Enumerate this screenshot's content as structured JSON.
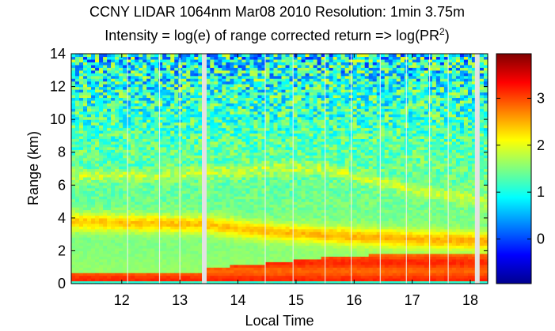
{
  "chart_data": {
    "type": "heatmap",
    "title": "CCNY LIDAR 1064nm Mar08 2010 Resolution: 1min 3.75m",
    "subtitle_prefix": "Intensity = log(e) of range corrected return => log(PR",
    "subtitle_superscript": "2",
    "subtitle_suffix": ")",
    "xlabel": "Local Time",
    "ylabel": "Range (km)",
    "xlim": [
      11.13,
      18.3
    ],
    "ylim": [
      0,
      14
    ],
    "x_ticks": [
      12,
      13,
      14,
      15,
      16,
      17,
      18
    ],
    "x_tick_labels": [
      "12",
      "13",
      "14",
      "15",
      "16",
      "17",
      "18"
    ],
    "y_ticks": [
      0,
      2,
      4,
      6,
      8,
      10,
      12,
      14
    ],
    "y_tick_labels": [
      "0",
      "2",
      "4",
      "6",
      "8",
      "10",
      "12",
      "14"
    ],
    "colorbar": {
      "range": [
        -0.95,
        3.95
      ],
      "ticks": [
        0,
        1,
        2,
        3
      ],
      "tick_labels": [
        "0",
        "1",
        "2",
        "3"
      ],
      "colormap": "jet"
    },
    "data_gaps_local_time": [
      13.42,
      18.12
    ],
    "profile_breaks_local_time": [
      12.1,
      12.65,
      13.0,
      14.47,
      14.95,
      15.5,
      15.95,
      16.45,
      16.9,
      17.3,
      17.62
    ],
    "grid": false,
    "features": [
      {
        "name": "boundary layer",
        "intensity": 3.0,
        "top_km_by_time": [
          [
            11.13,
            0.7
          ],
          [
            13.4,
            0.75
          ],
          [
            13.5,
            1.0
          ],
          [
            14.5,
            1.25
          ],
          [
            15.5,
            1.6
          ],
          [
            16.5,
            1.8
          ],
          [
            18.3,
            1.9
          ]
        ]
      },
      {
        "name": "aerosol layer",
        "intensity": 2.4,
        "center_km_by_time": [
          [
            11.13,
            3.8
          ],
          [
            12.5,
            3.7
          ],
          [
            13.5,
            3.6
          ],
          [
            14.5,
            3.2
          ],
          [
            15.5,
            3.0
          ],
          [
            16.5,
            2.8
          ],
          [
            18.3,
            2.6
          ]
        ]
      },
      {
        "name": "upper layer",
        "intensity": 1.9,
        "center_km_by_time": [
          [
            11.13,
            6.6
          ],
          [
            12.5,
            6.6
          ],
          [
            13.5,
            6.8
          ],
          [
            14.5,
            7.0
          ],
          [
            15.5,
            7.0
          ],
          [
            16.3,
            6.3
          ],
          [
            17.3,
            5.6
          ],
          [
            18.3,
            5.0
          ]
        ]
      }
    ]
  }
}
